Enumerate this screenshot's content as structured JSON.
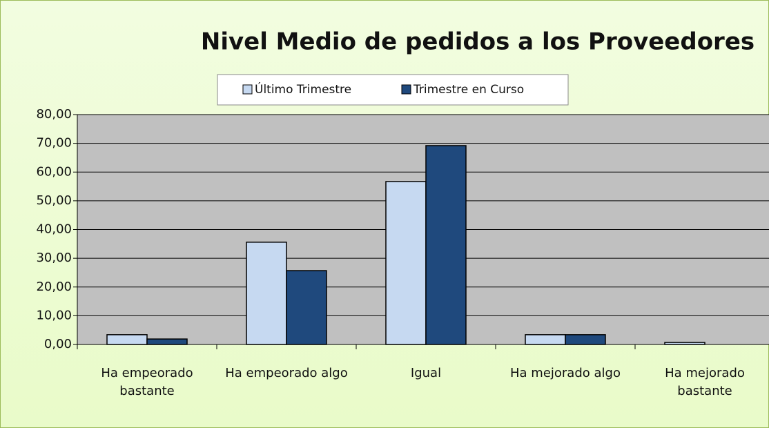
{
  "chart_data": {
    "type": "bar",
    "title": "Nivel Medio de pedidos a los Proveedores",
    "categories": [
      "Ha empeorado bastante",
      "Ha empeorado algo",
      "Igual",
      "Ha mejorado algo",
      "Ha mejorado bastante"
    ],
    "series": [
      {
        "name": "Último Trimestre",
        "color": "#c6d9f1",
        "values": [
          3.4,
          35.6,
          56.7,
          3.4,
          0.7
        ]
      },
      {
        "name": "Trimestre en Curso",
        "color": "#1f497d",
        "values": [
          1.9,
          25.7,
          69.2,
          3.4,
          0
        ]
      }
    ],
    "ylim": [
      0,
      80
    ],
    "yticks": [
      {
        "value": 0,
        "label": "0,00"
      },
      {
        "value": 10,
        "label": "10,00"
      },
      {
        "value": 20,
        "label": "20,00"
      },
      {
        "value": 30,
        "label": "30,00"
      },
      {
        "value": 40,
        "label": "40,00"
      },
      {
        "value": 50,
        "label": "50,00"
      },
      {
        "value": 60,
        "label": "60,00"
      },
      {
        "value": 70,
        "label": "70,00"
      },
      {
        "value": 80,
        "label": "80,00"
      }
    ],
    "grid": true
  }
}
